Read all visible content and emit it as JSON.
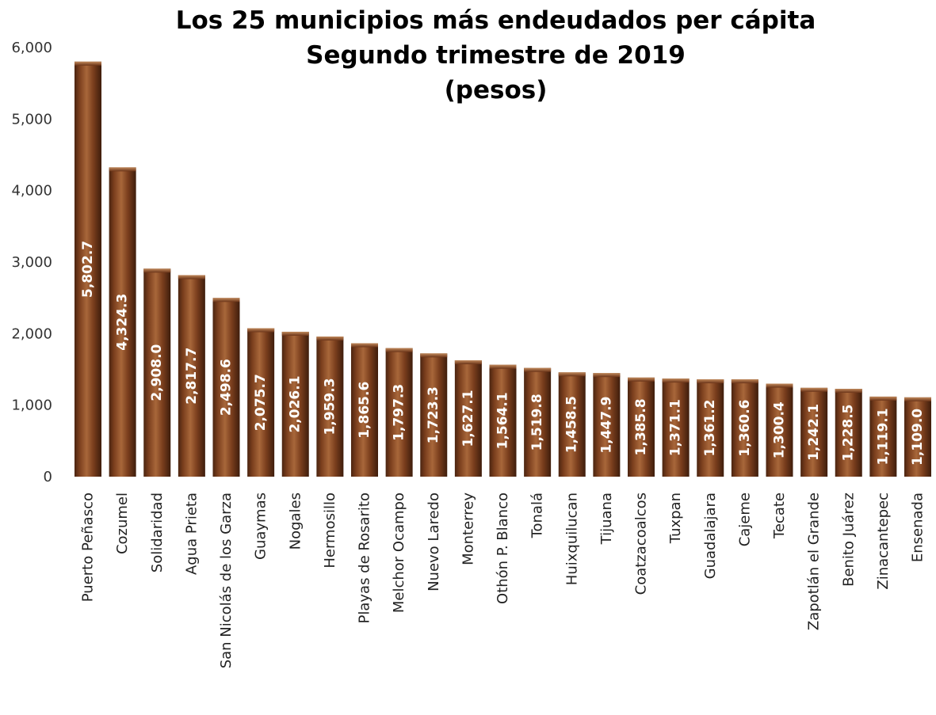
{
  "chart_data": {
    "type": "bar",
    "title": "Los 25 municipios más endeudados per cápita",
    "subtitle": "Segundo trimestre de 2019",
    "unit_label": "(pesos)",
    "xlabel": "",
    "ylabel": "",
    "ylim": [
      0,
      6000
    ],
    "yticks": [
      0,
      1000,
      2000,
      3000,
      4000,
      5000,
      6000
    ],
    "ytick_labels": [
      "0",
      "1,000",
      "2,000",
      "3,000",
      "4,000",
      "5,000",
      "6,000"
    ],
    "grid": false,
    "legend": "none",
    "bar_color": "#7b3f1e",
    "categories": [
      "Puerto Peñasco",
      "Cozumel",
      "Solidaridad",
      "Agua Prieta",
      "San Nicolás de los Garza",
      "Guaymas",
      "Nogales",
      "Hermosillo",
      "Playas de Rosarito",
      "Melchor Ocampo",
      "Nuevo Laredo",
      "Monterrey",
      "Othón P. Blanco",
      "Tonalá",
      "Huixquilucan",
      "Tijuana",
      "Coatzacoalcos",
      "Tuxpan",
      "Guadalajara",
      "Cajeme",
      "Tecate",
      "Zapotlán el Grande",
      "Benito Juárez",
      "Zinacantepec",
      "Ensenada"
    ],
    "values": [
      5802.7,
      4324.3,
      2908.0,
      2817.7,
      2498.6,
      2075.7,
      2026.1,
      1959.3,
      1865.6,
      1797.3,
      1723.3,
      1627.1,
      1564.1,
      1519.8,
      1458.5,
      1447.9,
      1385.8,
      1371.1,
      1361.2,
      1360.6,
      1300.4,
      1242.1,
      1228.5,
      1119.1,
      1109.0
    ],
    "value_labels": [
      "5,802.7",
      "4,324.3",
      "2,908.0",
      "2,817.7",
      "2,498.6",
      "2,075.7",
      "2,026.1",
      "1,959.3",
      "1,865.6",
      "1,797.3",
      "1,723.3",
      "1,627.1",
      "1,564.1",
      "1,519.8",
      "1,458.5",
      "1,447.9",
      "1,385.8",
      "1,371.1",
      "1,361.2",
      "1,360.6",
      "1,300.4",
      "1,242.1",
      "1,228.5",
      "1,119.1",
      "1,109.0"
    ]
  }
}
